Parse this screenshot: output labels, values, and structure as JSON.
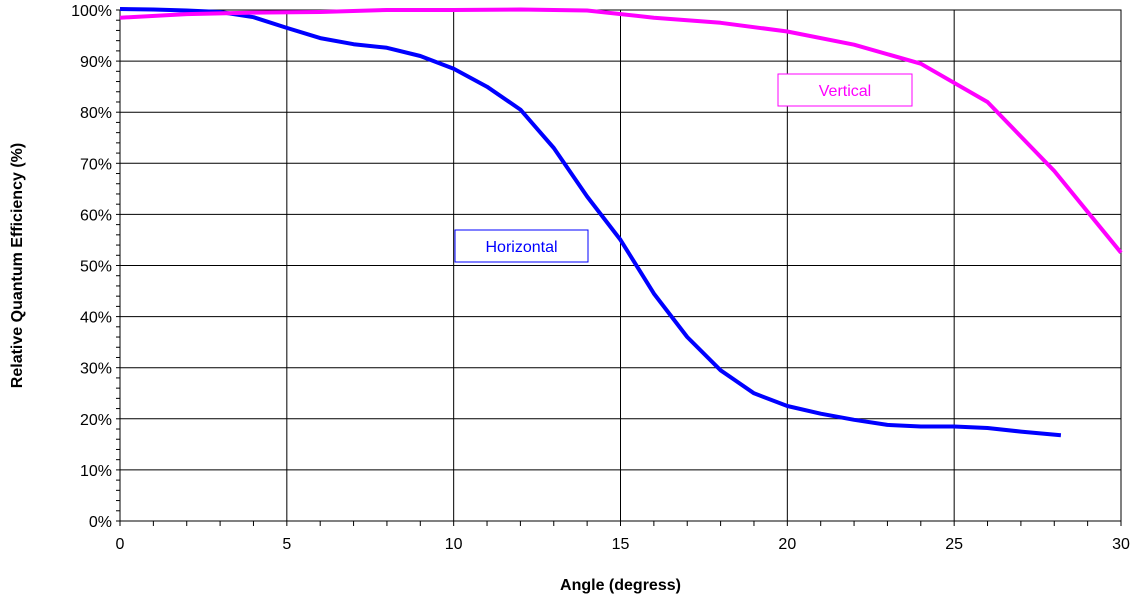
{
  "chart_data": {
    "type": "line",
    "xlabel": "Angle (degress)",
    "ylabel": "Relative Quantum Efficiency (%)",
    "xlim": [
      0,
      30
    ],
    "ylim": [
      0,
      100
    ],
    "x_ticks": [
      "0",
      "5",
      "10",
      "15",
      "20",
      "25",
      "30"
    ],
    "y_ticks": [
      "0%",
      "10%",
      "20%",
      "30%",
      "40%",
      "50%",
      "60%",
      "70%",
      "80%",
      "90%",
      "100%"
    ],
    "grid": true,
    "series": [
      {
        "name": "Horizontal",
        "color": "#0000ff",
        "x": [
          0,
          1,
          2,
          3,
          4,
          5,
          6,
          7,
          8,
          9,
          10,
          11,
          12,
          13,
          14,
          15,
          16,
          17,
          18,
          19,
          20,
          21,
          22,
          23,
          24,
          25,
          26,
          27,
          28.2
        ],
        "y": [
          100.2,
          100.1,
          99.9,
          99.6,
          98.6,
          96.5,
          94.5,
          93.3,
          92.6,
          91.0,
          88.5,
          85.0,
          80.5,
          73.0,
          63.5,
          55.0,
          44.5,
          36.0,
          29.5,
          25.0,
          22.5,
          21.0,
          19.8,
          18.8,
          18.5,
          18.5,
          18.2,
          17.5,
          16.8
        ]
      },
      {
        "name": "Vertical",
        "color": "#ff00ff",
        "x": [
          0,
          2,
          4,
          6,
          8,
          10,
          12,
          14,
          16,
          18,
          20,
          22,
          24,
          26,
          28,
          30
        ],
        "y": [
          98.5,
          99.2,
          99.5,
          99.6,
          100.0,
          100.0,
          100.1,
          99.9,
          98.5,
          97.5,
          95.8,
          93.2,
          89.5,
          82.0,
          68.5,
          52.5
        ]
      }
    ],
    "annotations": [
      {
        "text": "Horizontal",
        "color": "#0000ff"
      },
      {
        "text": "Vertical",
        "color": "#ff00ff"
      }
    ]
  }
}
